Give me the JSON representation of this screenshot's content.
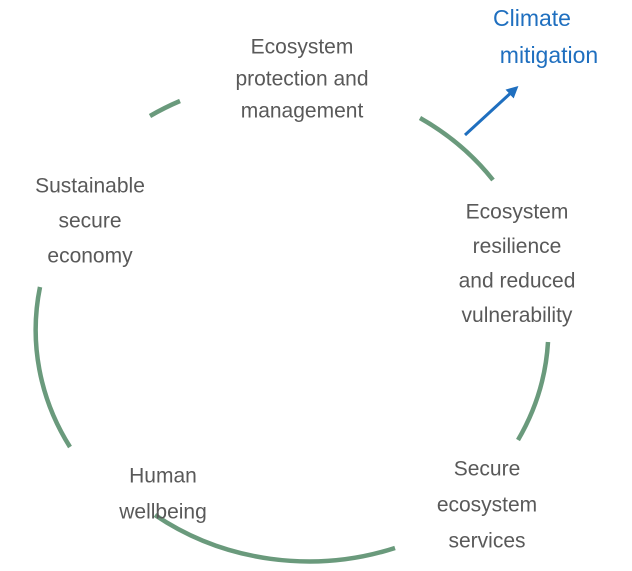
{
  "nodes": [
    {
      "lines": [
        "Ecosystem",
        "protection and",
        "management"
      ]
    },
    {
      "lines": [
        "Ecosystem",
        "resilience",
        "and reduced",
        "vulnerability"
      ]
    },
    {
      "lines": [
        "Secure",
        "ecosystem",
        "services"
      ]
    },
    {
      "lines": [
        "Human",
        "wellbeing"
      ]
    },
    {
      "lines": [
        "Sustainable",
        "secure",
        "economy"
      ]
    }
  ],
  "outcome": {
    "lines": [
      "Climate",
      "mitigation"
    ]
  }
}
